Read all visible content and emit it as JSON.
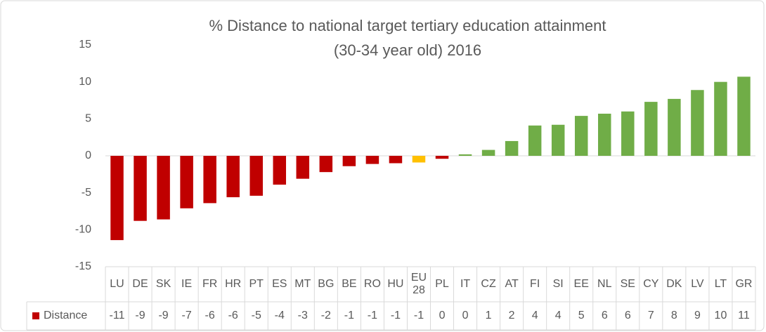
{
  "chart_data": {
    "type": "bar",
    "title": [
      "% Distance to national target tertiary education attainment",
      "(30-34 year old) 2016"
    ],
    "categories": [
      "LU",
      "DE",
      "SK",
      "IE",
      "FR",
      "HR",
      "PT",
      "ES",
      "MT",
      "BG",
      "BE",
      "RO",
      "HU",
      "EU 28",
      "PL",
      "IT",
      "CZ",
      "AT",
      "FI",
      "SI",
      "EE",
      "NL",
      "SE",
      "CY",
      "DK",
      "LV",
      "LT",
      "GR"
    ],
    "series": [
      {
        "name": "Distance",
        "color": "#c00000",
        "values": [
          -11.4,
          -8.8,
          -8.6,
          -7.1,
          -6.4,
          -5.6,
          -5.4,
          -3.9,
          -3.1,
          -2.2,
          -1.4,
          -1.1,
          -1.0,
          -0.9,
          -0.4,
          0.2,
          0.8,
          2.0,
          4.1,
          4.2,
          5.4,
          5.7,
          6.0,
          7.3,
          7.7,
          8.9,
          10.0,
          10.7
        ],
        "value_labels": [
          "-11",
          "-9",
          "-9",
          "-7",
          "-6",
          "-6",
          "-5",
          "-4",
          "-3",
          "-2",
          "-1",
          "-1",
          "-1",
          "-1",
          "0",
          "0",
          "1",
          "2",
          "4",
          "4",
          "5",
          "6",
          "6",
          "7",
          "8",
          "9",
          "10",
          "11"
        ],
        "bar_colors": [
          "#c00000",
          "#c00000",
          "#c00000",
          "#c00000",
          "#c00000",
          "#c00000",
          "#c00000",
          "#c00000",
          "#c00000",
          "#c00000",
          "#c00000",
          "#c00000",
          "#c00000",
          "#ffc000",
          "#c00000",
          "#70ad47",
          "#70ad47",
          "#70ad47",
          "#70ad47",
          "#70ad47",
          "#70ad47",
          "#70ad47",
          "#70ad47",
          "#70ad47",
          "#70ad47",
          "#70ad47",
          "#70ad47",
          "#70ad47"
        ]
      }
    ],
    "ylim": [
      -15,
      15
    ],
    "yticks": [
      -15,
      -10,
      -5,
      0,
      5,
      10,
      15
    ],
    "grid": false
  }
}
